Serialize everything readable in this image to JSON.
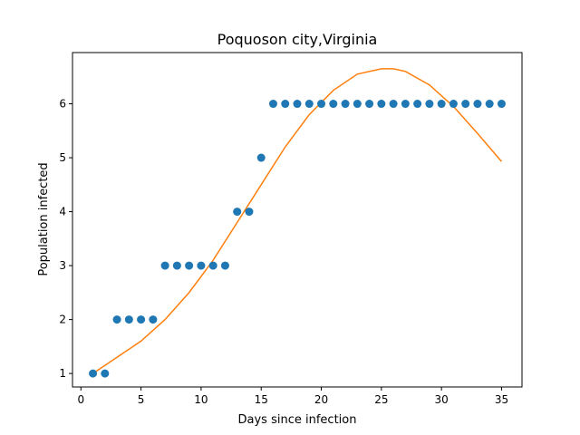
{
  "chart_data": {
    "type": "scatter",
    "title": "Poquoson city,Virginia",
    "xlabel": "Days since infection",
    "ylabel": "Population infected",
    "xlim": [
      -0.7,
      36.7
    ],
    "ylim": [
      0.75,
      6.95
    ],
    "xticks": [
      0,
      5,
      10,
      15,
      20,
      25,
      30,
      35
    ],
    "yticks": [
      1,
      2,
      3,
      4,
      5,
      6
    ],
    "grid": false,
    "series": [
      {
        "kind": "points",
        "color": "#1f77b4",
        "x": [
          1,
          2,
          3,
          4,
          5,
          6,
          7,
          8,
          9,
          10,
          11,
          12,
          13,
          14,
          15,
          16,
          17,
          18,
          19,
          20,
          21,
          22,
          23,
          24,
          25,
          26,
          27,
          28,
          29,
          30,
          31,
          32,
          33,
          34,
          35
        ],
        "y": [
          1,
          1,
          2,
          2,
          2,
          2,
          3,
          3,
          3,
          3,
          3,
          3,
          4,
          4,
          5,
          6,
          6,
          6,
          6,
          6,
          6,
          6,
          6,
          6,
          6,
          6,
          6,
          6,
          6,
          6,
          6,
          6,
          6,
          6,
          6
        ]
      },
      {
        "kind": "line",
        "color": "#ff7f0e",
        "x": [
          1,
          3,
          5,
          7,
          9,
          11,
          13,
          15,
          17,
          19,
          21,
          23,
          25,
          26,
          27,
          29,
          31,
          33,
          35
        ],
        "y": [
          1.0,
          1.3,
          1.6,
          2.0,
          2.5,
          3.1,
          3.8,
          4.5,
          5.2,
          5.8,
          6.25,
          6.55,
          6.65,
          6.65,
          6.6,
          6.35,
          5.95,
          5.45,
          4.93
        ]
      }
    ]
  }
}
